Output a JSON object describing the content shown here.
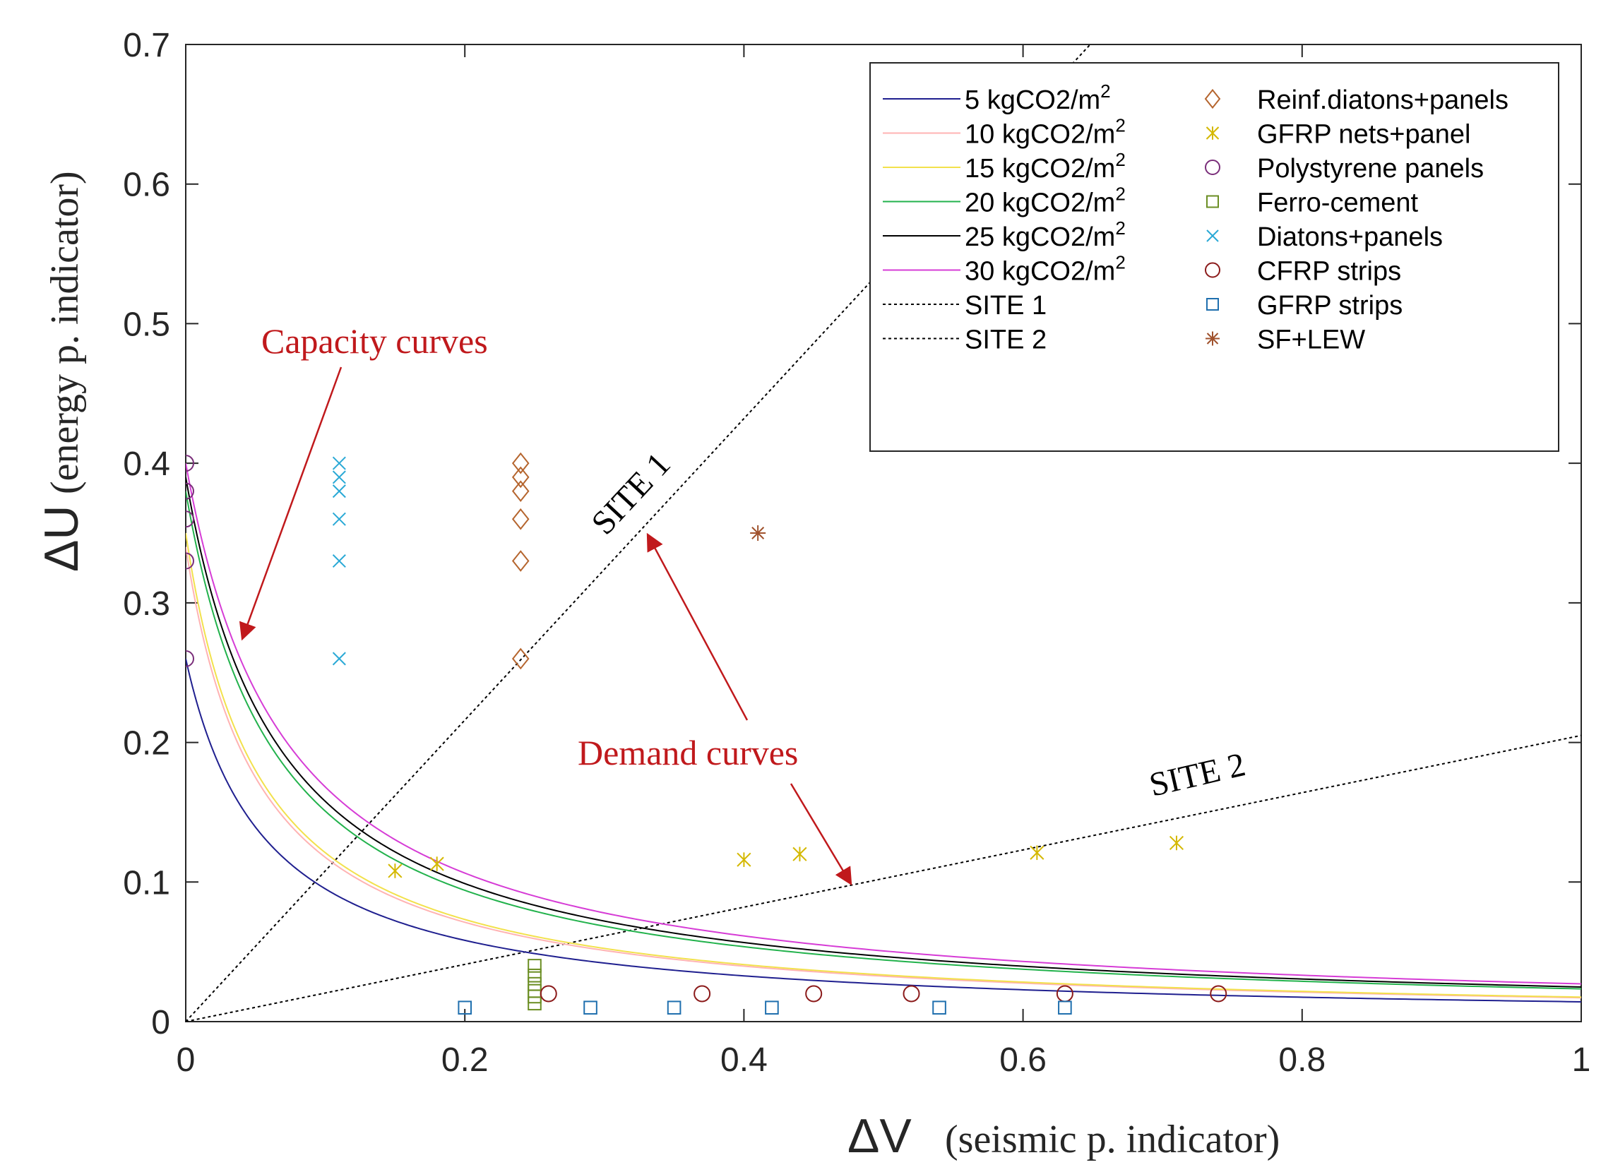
{
  "chart_data": {
    "type": "scatter",
    "title": "",
    "xlabel_symbol": "ΔV",
    "xlabel_text": "(seismic p. indicator)",
    "ylabel_symbol": "ΔU",
    "ylabel_text": "(energy p. indicator)",
    "xlim": [
      0,
      1
    ],
    "ylim": [
      0,
      0.7
    ],
    "xticks": [
      0,
      0.2,
      0.4,
      0.6,
      0.8,
      1
    ],
    "xtick_labels": [
      "0",
      "0.2",
      "0.4",
      "0.6",
      "0.8",
      "1"
    ],
    "yticks": [
      0,
      0.1,
      0.2,
      0.3,
      0.4,
      0.5,
      0.6,
      0.7
    ],
    "ytick_labels": [
      "0",
      "0.1",
      "0.2",
      "0.3",
      "0.4",
      "0.5",
      "0.6",
      "0.7"
    ],
    "grid": false,
    "legend_position": "top-right",
    "capacity_curves": [
      {
        "name": "5 kgCO2/m",
        "sup": "2",
        "color": "#1f1f8f",
        "k": 0.015,
        "y0": 0.26
      },
      {
        "name": "10 kgCO2/m",
        "sup": "2",
        "color": "#ffb3b3",
        "k": 0.018,
        "y0": 0.34
      },
      {
        "name": "15 kgCO2/m",
        "sup": "2",
        "color": "#f2e14c",
        "k": 0.0185,
        "y0": 0.35
      },
      {
        "name": "20 kgCO2/m",
        "sup": "2",
        "color": "#22b24c",
        "k": 0.025,
        "y0": 0.38
      },
      {
        "name": "25 kgCO2/m",
        "sup": "2",
        "color": "#000000",
        "k": 0.0265,
        "y0": 0.39
      },
      {
        "name": "30 kgCO2/m",
        "sup": "2",
        "color": "#d63cd6",
        "k": 0.029,
        "y0": 0.4
      }
    ],
    "demand_curves": [
      {
        "name": "SITE 1",
        "slope": 1.08,
        "color": "#000000"
      },
      {
        "name": "SITE 2",
        "slope": 0.205,
        "color": "#000000"
      }
    ],
    "series": [
      {
        "name": "Reinf.diatons+panels",
        "marker": "diamond",
        "color": "#b5652e",
        "points": [
          [
            0.24,
            0.4
          ],
          [
            0.24,
            0.39
          ],
          [
            0.24,
            0.38
          ],
          [
            0.24,
            0.36
          ],
          [
            0.24,
            0.33
          ],
          [
            0.24,
            0.26
          ]
        ]
      },
      {
        "name": "GFRP nets+panel",
        "marker": "asterisk",
        "color": "#d4b800",
        "points": [
          [
            0.15,
            0.108
          ],
          [
            0.18,
            0.113
          ],
          [
            0.4,
            0.116
          ],
          [
            0.44,
            0.12
          ],
          [
            0.61,
            0.121
          ],
          [
            0.71,
            0.128
          ]
        ]
      },
      {
        "name": "Polystyrene panels",
        "marker": "circle",
        "color": "#7a2e7a",
        "points": [
          [
            0.0,
            0.4
          ],
          [
            0.0,
            0.38
          ],
          [
            0.0,
            0.36
          ],
          [
            0.0,
            0.33
          ],
          [
            0.0,
            0.26
          ]
        ]
      },
      {
        "name": "Ferro-cement",
        "marker": "square",
        "color": "#6b8e23",
        "points": [
          [
            0.25,
            0.04
          ],
          [
            0.25,
            0.033
          ],
          [
            0.25,
            0.027
          ],
          [
            0.25,
            0.022
          ],
          [
            0.25,
            0.018
          ],
          [
            0.25,
            0.013
          ]
        ]
      },
      {
        "name": "Diatons+panels",
        "marker": "x",
        "color": "#2aa9d6",
        "points": [
          [
            0.11,
            0.4
          ],
          [
            0.11,
            0.39
          ],
          [
            0.11,
            0.38
          ],
          [
            0.11,
            0.36
          ],
          [
            0.11,
            0.33
          ],
          [
            0.11,
            0.26
          ]
        ]
      },
      {
        "name": "CFRP strips",
        "marker": "circle",
        "color": "#8b1a1a",
        "points": [
          [
            0.26,
            0.02
          ],
          [
            0.37,
            0.02
          ],
          [
            0.45,
            0.02
          ],
          [
            0.52,
            0.02
          ],
          [
            0.63,
            0.02
          ],
          [
            0.74,
            0.02
          ]
        ]
      },
      {
        "name": "GFRP strips",
        "marker": "square",
        "color": "#1f6fae",
        "points": [
          [
            0.2,
            0.01
          ],
          [
            0.29,
            0.01
          ],
          [
            0.35,
            0.01
          ],
          [
            0.42,
            0.01
          ],
          [
            0.54,
            0.01
          ],
          [
            0.63,
            0.01
          ]
        ]
      },
      {
        "name": "SF+LEW",
        "marker": "star",
        "color": "#a0522d",
        "points": [
          [
            0.41,
            0.35
          ]
        ]
      }
    ],
    "annotations": {
      "capacity": "Capacity curves",
      "demand": "Demand curves",
      "site1": "SITE 1",
      "site2": "SITE 2"
    }
  }
}
